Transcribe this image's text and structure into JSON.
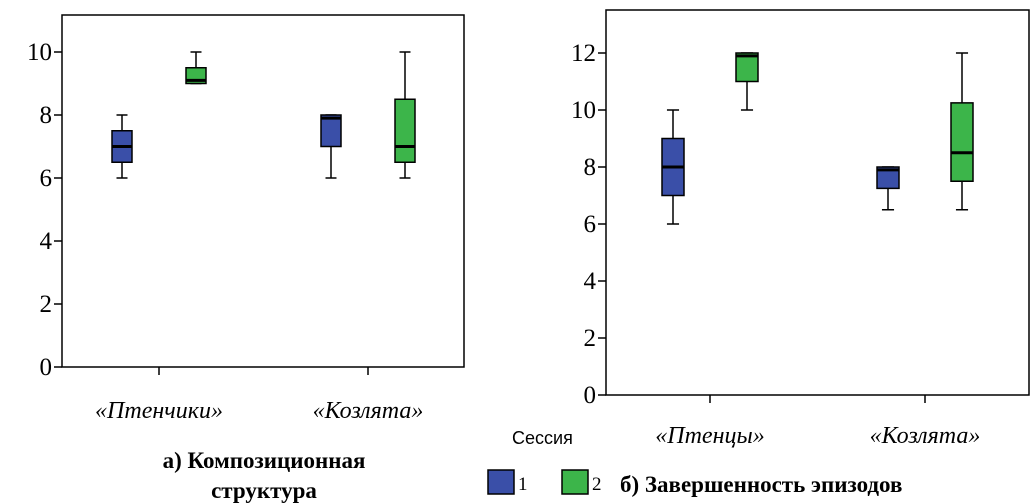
{
  "legend": {
    "title": "Сессия",
    "items": [
      {
        "label": "1",
        "color": "#3a4fa8"
      },
      {
        "label": "2",
        "color": "#3cb54a"
      }
    ]
  },
  "chart_data": [
    {
      "type": "box",
      "caption_lines": [
        "а) Композиционная",
        "структура"
      ],
      "categories": [
        "«Птенчики»",
        "«Козлята»"
      ],
      "ylim": [
        0,
        11
      ],
      "yticks": [
        0,
        2,
        4,
        6,
        8,
        10
      ],
      "ytick_labels": [
        "0",
        "2",
        "4",
        "6",
        "8",
        "10"
      ],
      "series": [
        {
          "name": "1",
          "color": "#3a4fa8",
          "boxes": [
            {
              "min": 6,
              "q1": 6.5,
              "median": 7,
              "q3": 7.5,
              "max": 8
            },
            {
              "min": 6,
              "q1": 7,
              "median": 7.9,
              "q3": 8,
              "max": 8
            }
          ]
        },
        {
          "name": "2",
          "color": "#3cb54a",
          "boxes": [
            {
              "min": 9,
              "q1": 9,
              "median": 9.1,
              "q3": 9.5,
              "max": 10
            },
            {
              "min": 6,
              "q1": 6.5,
              "median": 7,
              "q3": 8.5,
              "max": 10
            }
          ]
        }
      ]
    },
    {
      "type": "box",
      "caption_lines": [
        "б) Завершенность эпизодов"
      ],
      "categories": [
        "«Птенцы»",
        "«Козлята»"
      ],
      "ylim": [
        0,
        13
      ],
      "yticks": [
        0,
        2,
        4,
        6,
        8,
        10,
        12
      ],
      "ytick_labels": [
        "0",
        "2",
        "4",
        "6",
        "8",
        "10",
        "12"
      ],
      "series": [
        {
          "name": "1",
          "color": "#3a4fa8",
          "boxes": [
            {
              "min": 6,
              "q1": 7,
              "median": 8,
              "q3": 9,
              "max": 10
            },
            {
              "min": 6.5,
              "q1": 7.25,
              "median": 7.9,
              "q3": 8,
              "max": 8
            }
          ]
        },
        {
          "name": "2",
          "color": "#3cb54a",
          "boxes": [
            {
              "min": 10,
              "q1": 11,
              "median": 11.9,
              "q3": 12,
              "max": 12
            },
            {
              "min": 6.5,
              "q1": 7.5,
              "median": 8.5,
              "q3": 10.25,
              "max": 12
            }
          ]
        }
      ]
    }
  ]
}
